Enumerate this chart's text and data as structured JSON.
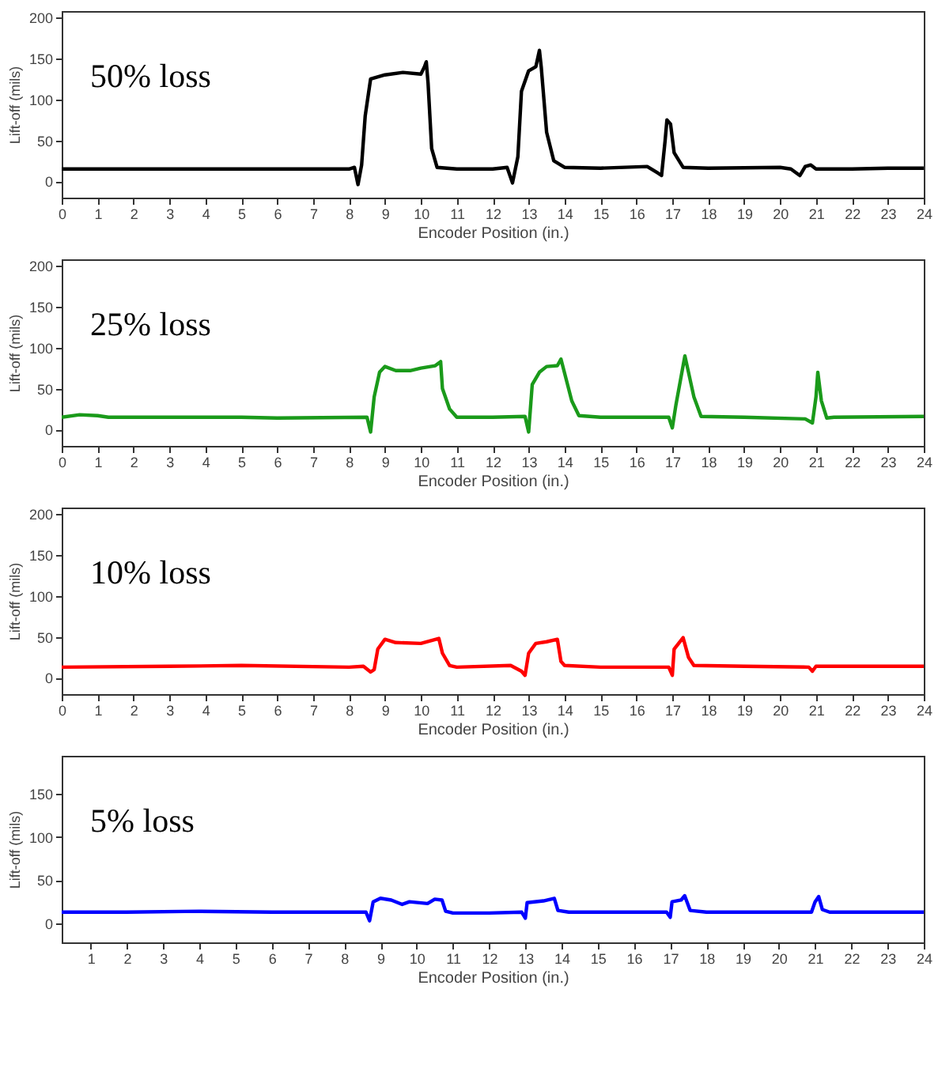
{
  "chart_data": [
    {
      "type": "line",
      "annotations": [
        "50% loss"
      ],
      "xlabel": "Encoder Position (in.)",
      "ylabel": "Lift-off (mils)",
      "xlim": [
        0,
        24
      ],
      "xticks": [
        0,
        1,
        2,
        3,
        4,
        5,
        6,
        7,
        8,
        9,
        10,
        11,
        12,
        13,
        14,
        15,
        16,
        17,
        18,
        19,
        20,
        21,
        22,
        23,
        24
      ],
      "ylim": [
        -20,
        208
      ],
      "yticks": [
        0,
        50,
        100,
        150,
        200
      ],
      "series": [
        {
          "color": "#000000",
          "x": [
            0,
            4,
            8,
            8.15,
            8.25,
            8.35,
            8.45,
            8.6,
            9,
            9.5,
            10,
            10.1,
            10.15,
            10.2,
            10.3,
            10.45,
            11,
            12,
            12.4,
            12.55,
            12.7,
            12.8,
            13,
            13.2,
            13.3,
            13.35,
            13.5,
            13.7,
            14,
            15,
            16.3,
            16.6,
            16.7,
            16.8,
            16.85,
            16.95,
            17.05,
            17.3,
            18,
            20,
            20.3,
            20.55,
            20.7,
            20.85,
            21,
            22,
            23,
            24
          ],
          "values": [
            15,
            15,
            15,
            17,
            -4,
            20,
            80,
            125,
            130,
            133,
            131,
            140,
            146,
            120,
            40,
            17,
            15,
            15,
            17,
            -2,
            30,
            110,
            135,
            140,
            160,
            140,
            60,
            25,
            17,
            16,
            18,
            10,
            7,
            50,
            75,
            70,
            35,
            17,
            16,
            17,
            15,
            7,
            18,
            20,
            15,
            15,
            16,
            16
          ]
        }
      ]
    },
    {
      "type": "line",
      "annotations": [
        "25% loss"
      ],
      "xlabel": "Encoder Position (in.)",
      "ylabel": "Lift-off (mils)",
      "xlim": [
        0,
        24
      ],
      "xticks": [
        0,
        1,
        2,
        3,
        4,
        5,
        6,
        7,
        8,
        9,
        10,
        11,
        12,
        13,
        14,
        15,
        16,
        17,
        18,
        19,
        20,
        21,
        22,
        23,
        24
      ],
      "ylim": [
        -20,
        208
      ],
      "yticks": [
        0,
        50,
        100,
        150,
        200
      ],
      "series": [
        {
          "color": "#1a9a1a",
          "x": [
            0,
            0.5,
            1,
            1.3,
            5,
            6,
            8.5,
            8.6,
            8.7,
            8.85,
            9,
            9.3,
            9.7,
            10,
            10.4,
            10.55,
            10.6,
            10.8,
            11,
            12,
            12.9,
            13,
            13.1,
            13.3,
            13.5,
            13.8,
            13.9,
            14.2,
            14.4,
            15,
            16.9,
            17,
            17.1,
            17.35,
            17.6,
            17.8,
            19,
            20.7,
            20.9,
            21,
            21.05,
            21.15,
            21.3,
            21.5,
            24
          ],
          "values": [
            15,
            18,
            17,
            15,
            15,
            14,
            15,
            -3,
            40,
            70,
            77,
            72,
            72,
            75,
            78,
            83,
            50,
            25,
            15,
            15,
            16,
            -3,
            55,
            70,
            77,
            78,
            86,
            35,
            17,
            15,
            15,
            2,
            30,
            90,
            40,
            16,
            15,
            13,
            8,
            40,
            70,
            35,
            14,
            15,
            16
          ]
        }
      ]
    },
    {
      "type": "line",
      "annotations": [
        "10% loss"
      ],
      "xlabel": "Encoder Position (in.)",
      "ylabel": "Lift-off (mils)",
      "xlim": [
        0,
        24
      ],
      "xticks": [
        0,
        1,
        2,
        3,
        4,
        5,
        6,
        7,
        8,
        9,
        10,
        11,
        12,
        13,
        14,
        15,
        16,
        17,
        18,
        19,
        20,
        21,
        22,
        23,
        24
      ],
      "ylim": [
        -20,
        208
      ],
      "yticks": [
        0,
        50,
        100,
        150,
        200
      ],
      "series": [
        {
          "color": "#ff0000",
          "x": [
            0,
            3,
            5,
            8,
            8.4,
            8.6,
            8.7,
            8.8,
            9,
            9.3,
            10,
            10.5,
            10.6,
            10.8,
            11,
            12.5,
            12.8,
            12.9,
            13,
            13.2,
            13.5,
            13.8,
            13.9,
            14,
            15,
            16.9,
            17,
            17.05,
            17.3,
            17.45,
            17.6,
            19,
            20.8,
            20.9,
            21,
            24
          ],
          "values": [
            13,
            14,
            15,
            13,
            14,
            7,
            10,
            35,
            47,
            43,
            42,
            48,
            30,
            15,
            13,
            15,
            8,
            3,
            30,
            42,
            44,
            47,
            20,
            15,
            13,
            13,
            3,
            35,
            49,
            25,
            15,
            14,
            13,
            8,
            14,
            14
          ]
        }
      ]
    },
    {
      "type": "line",
      "annotations": [
        "5% loss"
      ],
      "xlabel": "Encoder Position (in.)",
      "ylabel": "Lift-off (mils)",
      "xlim": [
        0.2,
        24
      ],
      "xticks": [
        1,
        2,
        3,
        4,
        5,
        6,
        7,
        8,
        9,
        10,
        11,
        12,
        13,
        14,
        15,
        16,
        17,
        18,
        19,
        20,
        21,
        22,
        23,
        24
      ],
      "ylim": [
        -22,
        194
      ],
      "yticks": [
        0,
        50,
        100,
        150
      ],
      "series": [
        {
          "color": "#0000ff",
          "x": [
            0.2,
            2,
            4,
            6,
            8.6,
            8.7,
            8.8,
            9,
            9.3,
            9.6,
            9.8,
            10.3,
            10.5,
            10.7,
            10.8,
            11,
            12,
            12.9,
            13,
            13.05,
            13.5,
            13.8,
            13.9,
            14.2,
            16.9,
            17,
            17.05,
            17.3,
            17.4,
            17.55,
            18,
            20.9,
            21,
            21.1,
            21.2,
            21.4,
            24
          ],
          "values": [
            13,
            13,
            14,
            13,
            13,
            3,
            25,
            29,
            27,
            22,
            25,
            23,
            28,
            27,
            14,
            12,
            12,
            13,
            6,
            24,
            26,
            29,
            15,
            13,
            13,
            7,
            25,
            27,
            32,
            15,
            13,
            13,
            25,
            31,
            16,
            13,
            13
          ]
        }
      ]
    }
  ]
}
